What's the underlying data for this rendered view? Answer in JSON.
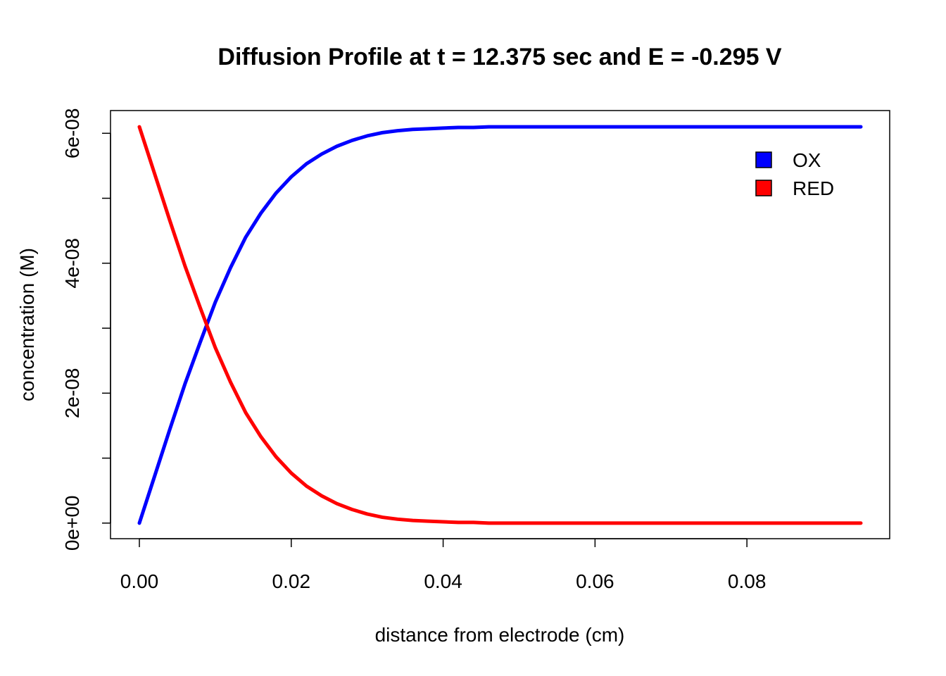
{
  "chart_data": {
    "type": "line",
    "title": "Diffusion Profile at t = 12.375 sec and E = -0.295 V",
    "xlabel": "distance from electrode (cm)",
    "ylabel": "concentration (M)",
    "xlim": [
      -0.0038,
      0.0988
    ],
    "ylim": [
      -2.4e-09,
      6.35e-08
    ],
    "x_ticks": [
      0.0,
      0.02,
      0.04,
      0.06,
      0.08
    ],
    "x_tick_labels": [
      "0.00",
      "0.02",
      "0.04",
      "0.06",
      "0.08"
    ],
    "y_ticks": [
      0,
      1e-08,
      2e-08,
      3e-08,
      4e-08,
      5e-08,
      6e-08
    ],
    "y_tick_labels": [
      "0e+00",
      "",
      "2e-08",
      "",
      "4e-08",
      "",
      "6e-08"
    ],
    "grid": false,
    "legend_position": "top-right",
    "x": [
      0.0,
      0.002,
      0.004,
      0.006,
      0.008,
      0.01,
      0.012,
      0.014,
      0.016,
      0.018,
      0.02,
      0.022,
      0.024,
      0.026,
      0.028,
      0.03,
      0.032,
      0.034,
      0.036,
      0.038,
      0.04,
      0.042,
      0.044,
      0.046,
      0.048,
      0.05,
      0.06,
      0.07,
      0.08,
      0.095
    ],
    "series": [
      {
        "name": "OX",
        "color": "#0000ff",
        "values": [
          0.0,
          7.2e-09,
          1.44e-08,
          2.14e-08,
          2.78e-08,
          3.4e-08,
          3.93e-08,
          4.4e-08,
          4.77e-08,
          5.08e-08,
          5.33e-08,
          5.53e-08,
          5.68e-08,
          5.8e-08,
          5.89e-08,
          5.96e-08,
          6.01e-08,
          6.04e-08,
          6.06e-08,
          6.07e-08,
          6.08e-08,
          6.09e-08,
          6.09e-08,
          6.1e-08,
          6.1e-08,
          6.1e-08,
          6.1e-08,
          6.1e-08,
          6.1e-08,
          6.1e-08
        ]
      },
      {
        "name": "RED",
        "color": "#ff0000",
        "values": [
          6.1e-08,
          5.38e-08,
          4.66e-08,
          3.96e-08,
          3.32e-08,
          2.7e-08,
          2.17e-08,
          1.7e-08,
          1.33e-08,
          1.02e-08,
          7.7e-09,
          5.7e-09,
          4.2e-09,
          3e-09,
          2.1e-09,
          1.4e-09,
          9e-10,
          6e-10,
          4e-10,
          3e-10,
          2e-10,
          1e-10,
          1e-10,
          0.0,
          0.0,
          0.0,
          0.0,
          0.0,
          0.0,
          0.0
        ]
      }
    ]
  }
}
